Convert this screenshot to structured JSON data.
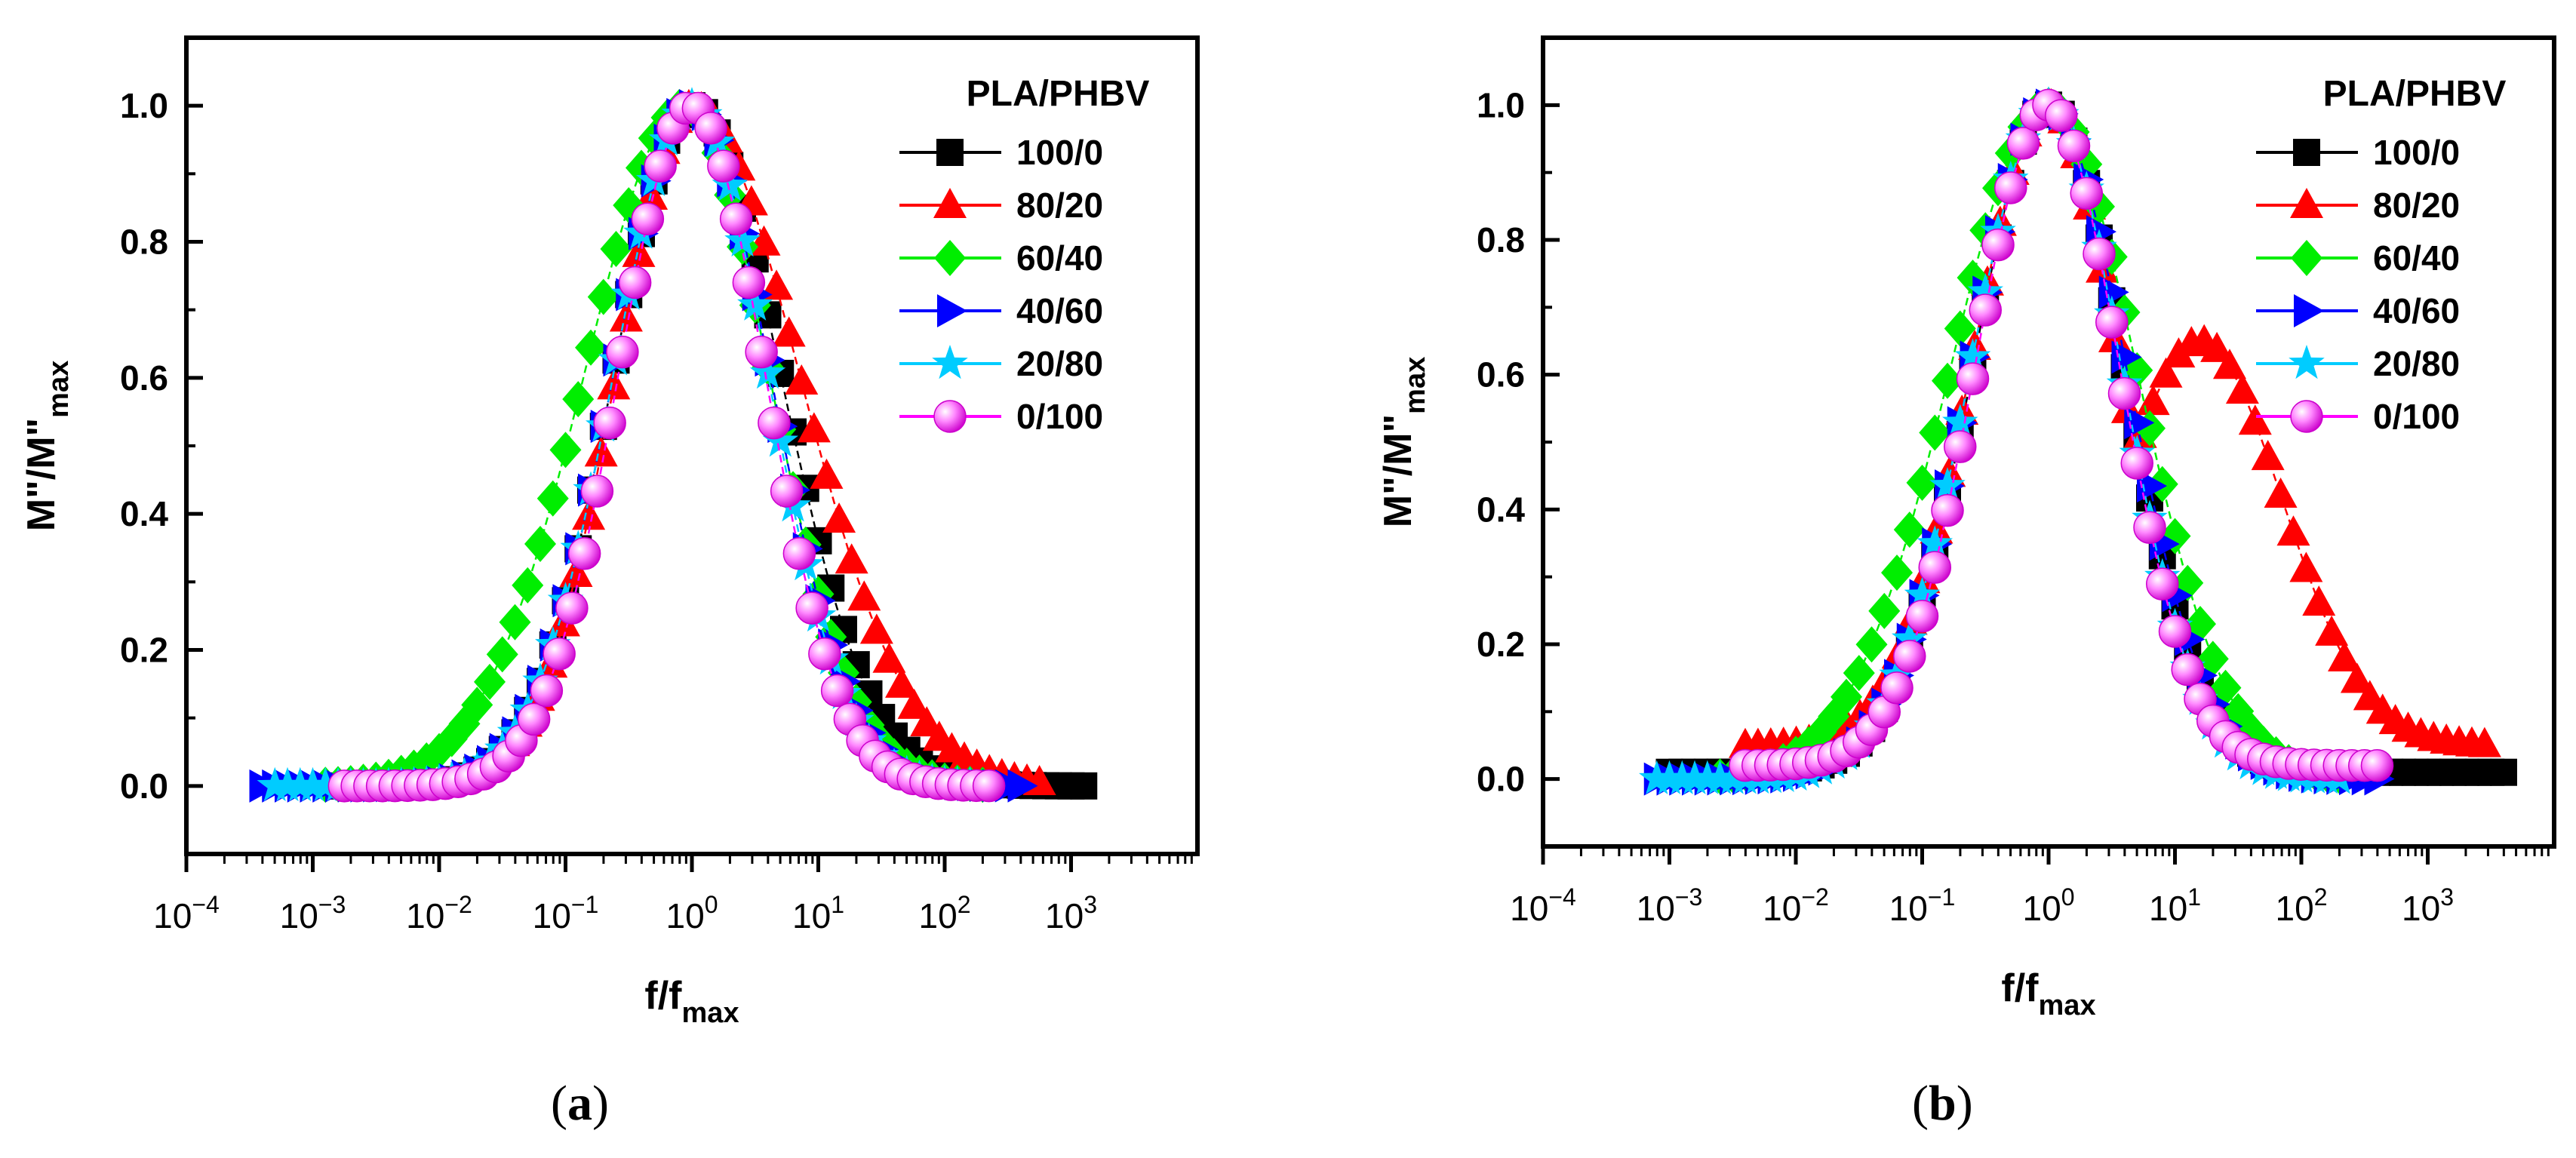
{
  "figure_captions": [
    {
      "open": "(",
      "letter": "a",
      "close": ")"
    },
    {
      "open": "(",
      "letter": "b",
      "close": ")"
    }
  ],
  "chart_data": [
    {
      "id": "a",
      "type": "scatter",
      "xscale": "log",
      "title": "",
      "xlabel": {
        "main": "f/f",
        "sub": "max"
      },
      "ylabel": {
        "main": "M\"/M\"",
        "sub": "max"
      },
      "xlim_exp": [
        -4,
        4
      ],
      "ylim": [
        -0.1,
        1.1
      ],
      "xtick_exps": [
        -4,
        -3,
        -2,
        -1,
        0,
        1,
        2,
        3
      ],
      "yticks": [
        "0.0",
        "0.2",
        "0.4",
        "0.6",
        "0.8",
        "1.0"
      ],
      "legend_title": "PLA/PHBV",
      "legend_position": "top-right",
      "series": [
        {
          "name": "100/0",
          "color": "#000000",
          "marker": "square",
          "xmin_exp": -2.8,
          "xmax_exp": 3.1,
          "peak_exp": 0.0,
          "left_width": 0.62,
          "right_width": 0.7,
          "baseline": 0.0
        },
        {
          "name": "80/20",
          "color": "#ff0000",
          "marker": "triangle-up",
          "xmin_exp": -2.7,
          "xmax_exp": 2.75,
          "peak_exp": 0.0,
          "left_width": 0.6,
          "right_width": 0.85,
          "baseline": 0.0
        },
        {
          "name": "60/40",
          "color": "#00ee00",
          "marker": "diamond",
          "xmin_exp": -2.9,
          "xmax_exp": 2.3,
          "peak_exp": -0.05,
          "left_width": 0.8,
          "right_width": 0.66,
          "baseline": 0.0
        },
        {
          "name": "40/60",
          "color": "#0000ff",
          "marker": "triangle-right",
          "xmin_exp": -3.4,
          "xmax_exp": 2.6,
          "peak_exp": 0.0,
          "left_width": 0.62,
          "right_width": 0.62,
          "baseline": 0.0
        },
        {
          "name": "20/80",
          "color": "#00ccff",
          "marker": "star",
          "xmin_exp": -3.3,
          "xmax_exp": 2.2,
          "peak_exp": 0.0,
          "left_width": 0.62,
          "right_width": 0.6,
          "baseline": 0.0
        },
        {
          "name": "0/100",
          "color": "#ff00ff",
          "marker": "sphere",
          "xmin_exp": -2.75,
          "xmax_exp": 2.35,
          "peak_exp": 0.0,
          "left_width": 0.58,
          "right_width": 0.58,
          "baseline": 0.0
        }
      ]
    },
    {
      "id": "b",
      "type": "scatter",
      "xscale": "log",
      "title": "",
      "xlabel": {
        "main": "f/f",
        "sub": "max"
      },
      "ylabel": {
        "main": "M\"/M\"",
        "sub": "max"
      },
      "xlim_exp": [
        -4,
        4
      ],
      "ylim": [
        -0.1,
        1.1
      ],
      "xtick_exps": [
        -4,
        -3,
        -2,
        -1,
        0,
        1,
        2,
        3
      ],
      "yticks": [
        "0.0",
        "0.2",
        "0.4",
        "0.6",
        "0.8",
        "1.0"
      ],
      "legend_title": "PLA/PHBV",
      "legend_position": "top-right",
      "series": [
        {
          "name": "100/0",
          "color": "#000000",
          "marker": "square",
          "xmin_exp": -3.0,
          "xmax_exp": 3.6,
          "peak_exp": 0.0,
          "left_width": 0.6,
          "right_width": 0.6,
          "baseline": 0.01
        },
        {
          "name": "80/20",
          "color": "#ff0000",
          "marker": "triangle-up",
          "xmin_exp": -2.4,
          "xmax_exp": 3.45,
          "peak_exp": 0.0,
          "left_width": 0.6,
          "right_width": 0.55,
          "baseline": 0.05,
          "shoulder": {
            "center_exp": 1.2,
            "amp": 0.6,
            "width": 0.65
          }
        },
        {
          "name": "60/40",
          "color": "#00ee00",
          "marker": "diamond",
          "xmin_exp": -2.6,
          "xmax_exp": 2.3,
          "peak_exp": 0.0,
          "left_width": 0.78,
          "right_width": 0.7,
          "baseline": 0.0
        },
        {
          "name": "40/60",
          "color": "#0000ff",
          "marker": "triangle-right",
          "xmin_exp": -3.1,
          "xmax_exp": 2.6,
          "peak_exp": 0.0,
          "left_width": 0.62,
          "right_width": 0.62,
          "baseline": 0.0
        },
        {
          "name": "20/80",
          "color": "#00ccff",
          "marker": "star",
          "xmin_exp": -3.1,
          "xmax_exp": 2.3,
          "peak_exp": 0.0,
          "left_width": 0.62,
          "right_width": 0.58,
          "baseline": 0.0
        },
        {
          "name": "0/100",
          "color": "#ff00ff",
          "marker": "sphere",
          "xmin_exp": -2.4,
          "xmax_exp": 2.6,
          "peak_exp": 0.0,
          "left_width": 0.58,
          "right_width": 0.56,
          "baseline": 0.02
        }
      ]
    }
  ]
}
